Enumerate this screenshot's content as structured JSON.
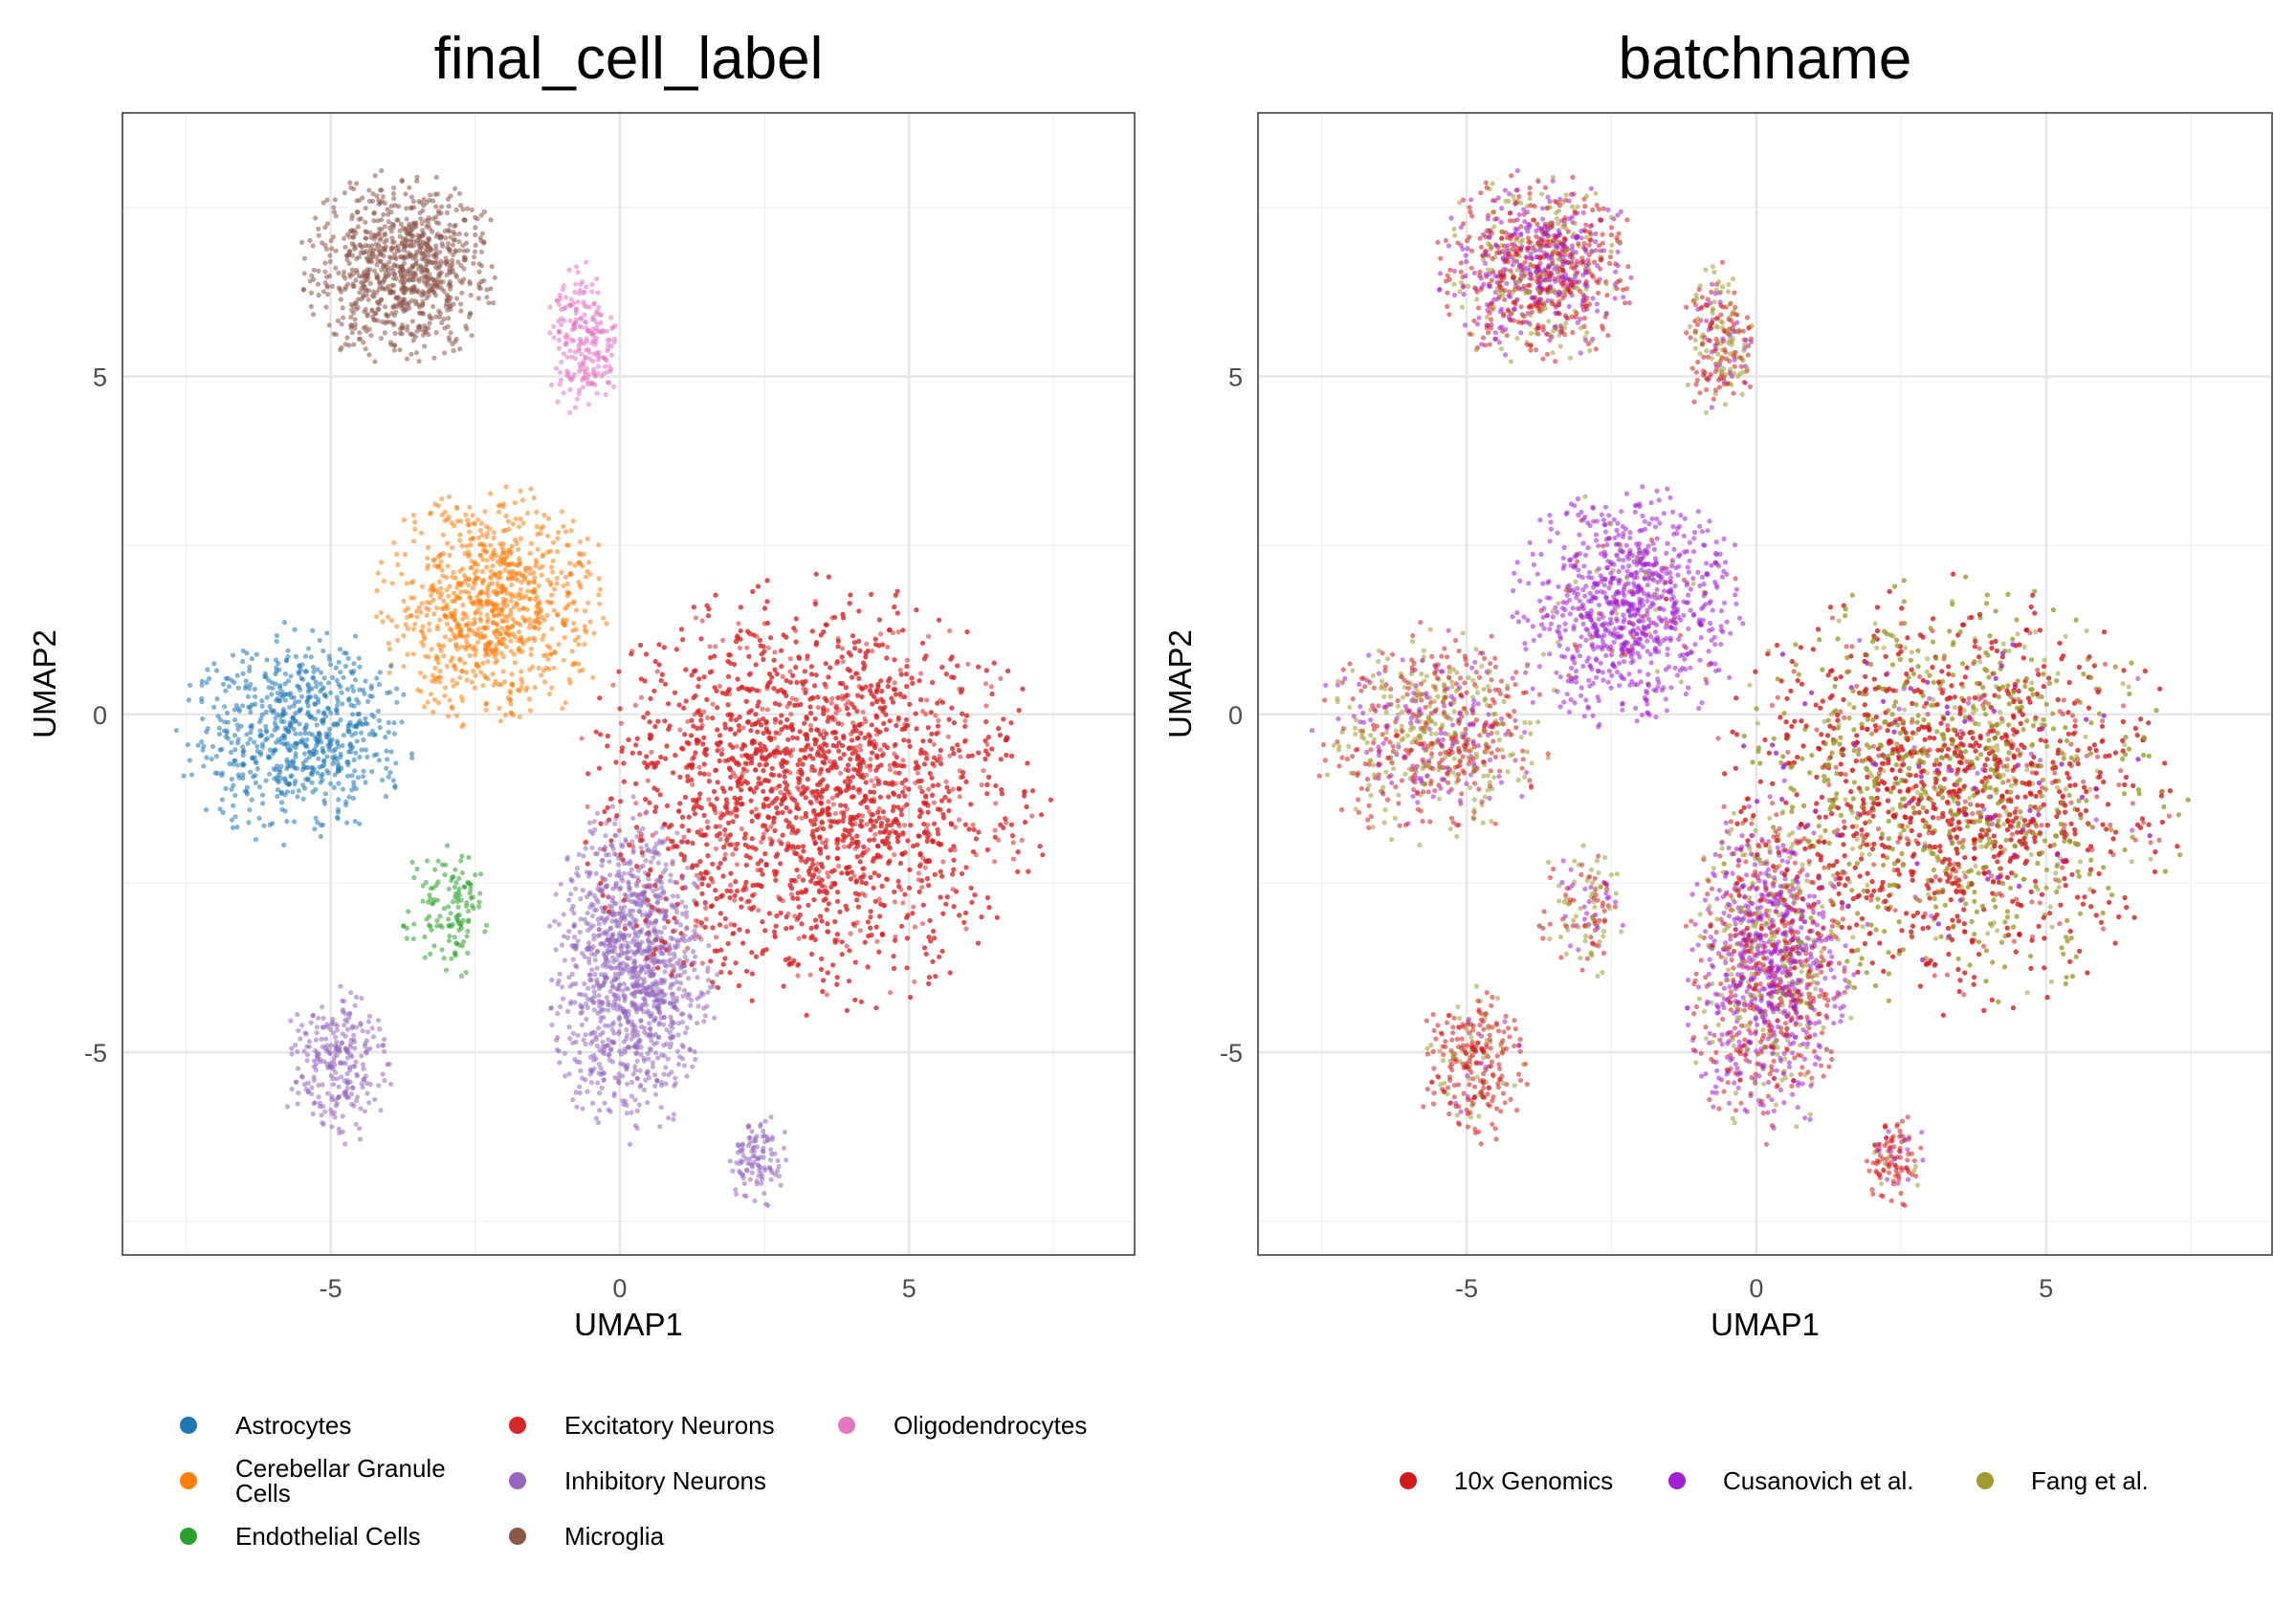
{
  "chart_data": [
    {
      "type": "scatter",
      "title": "final_cell_label",
      "xlabel": "UMAP1",
      "ylabel": "UMAP2",
      "xlim": [
        -8.6,
        8.9
      ],
      "ylim": [
        -8.0,
        8.9
      ],
      "xticks": [
        -5,
        0,
        5
      ],
      "yticks": [
        -5,
        0,
        5
      ],
      "grid": true,
      "legend_position": "bottom",
      "color_by": "final_cell_label",
      "legend": [
        {
          "label": "Astrocytes",
          "color": "#1f77b4"
        },
        {
          "label": "Cerebellar Granule Cells",
          "color": "#ff7f0e"
        },
        {
          "label": "Endothelial Cells",
          "color": "#2ca02c"
        },
        {
          "label": "Excitatory Neurons",
          "color": "#d62728"
        },
        {
          "label": "Inhibitory Neurons",
          "color": "#9467bd"
        },
        {
          "label": "Microglia",
          "color": "#8c564b"
        },
        {
          "label": "Oligodendrocytes",
          "color": "#e377c2"
        }
      ]
    },
    {
      "type": "scatter",
      "title": "batchname",
      "xlabel": "UMAP1",
      "ylabel": "UMAP2",
      "xlim": [
        -8.6,
        8.9
      ],
      "ylim": [
        -8.0,
        8.9
      ],
      "xticks": [
        -5,
        0,
        5
      ],
      "yticks": [
        -5,
        0,
        5
      ],
      "grid": true,
      "legend_position": "bottom",
      "color_by": "batchname",
      "legend": [
        {
          "label": "10x Genomics",
          "color": "#d01c1c"
        },
        {
          "label": "Cusanovich et al.",
          "color": "#a01fd0"
        },
        {
          "label": "Fang et al.",
          "color": "#a09a30"
        }
      ]
    }
  ],
  "clusters": [
    {
      "label": "Astrocytes",
      "center": [
        -5.6,
        -0.3
      ],
      "spread": [
        1.05,
        0.85
      ],
      "count": 700,
      "batch_mix": [
        0.45,
        0.2,
        0.35
      ]
    },
    {
      "label": "Cerebellar Granule Cells",
      "center": [
        -2.2,
        1.6
      ],
      "spread": [
        1.05,
        0.95
      ],
      "count": 900,
      "batch_mix": [
        0.03,
        0.94,
        0.03
      ]
    },
    {
      "label": "Endothelial Cells",
      "center": [
        -3.0,
        -2.9
      ],
      "spread": [
        0.4,
        0.55
      ],
      "count": 130,
      "batch_mix": [
        0.4,
        0.2,
        0.4
      ]
    },
    {
      "label": "Excitatory Neurons",
      "center": [
        3.3,
        -1.2
      ],
      "spread": [
        2.1,
        1.65
      ],
      "count": 3500,
      "batch_mix": [
        0.55,
        0.05,
        0.4
      ]
    },
    {
      "label": "Inhibitory Neurons",
      "center": [
        0.2,
        -3.8
      ],
      "spread": [
        0.75,
        1.3
      ],
      "count": 1200,
      "batch_mix": [
        0.3,
        0.5,
        0.2
      ]
    },
    {
      "label": "Inhibitory Neurons",
      "center": [
        -4.9,
        -5.2
      ],
      "spread": [
        0.5,
        0.6
      ],
      "count": 260,
      "batch_mix": [
        0.8,
        0.05,
        0.15
      ]
    },
    {
      "label": "Inhibitory Neurons",
      "center": [
        2.4,
        -6.6
      ],
      "spread": [
        0.3,
        0.35
      ],
      "count": 110,
      "batch_mix": [
        0.85,
        0.1,
        0.05
      ]
    },
    {
      "label": "Microglia",
      "center": [
        -3.8,
        6.6
      ],
      "spread": [
        0.9,
        0.75
      ],
      "count": 900,
      "batch_mix": [
        0.45,
        0.35,
        0.2
      ]
    },
    {
      "label": "Oligodendrocytes",
      "center": [
        -0.6,
        5.5
      ],
      "spread": [
        0.35,
        0.6
      ],
      "count": 220,
      "batch_mix": [
        0.5,
        0.15,
        0.35
      ]
    }
  ]
}
